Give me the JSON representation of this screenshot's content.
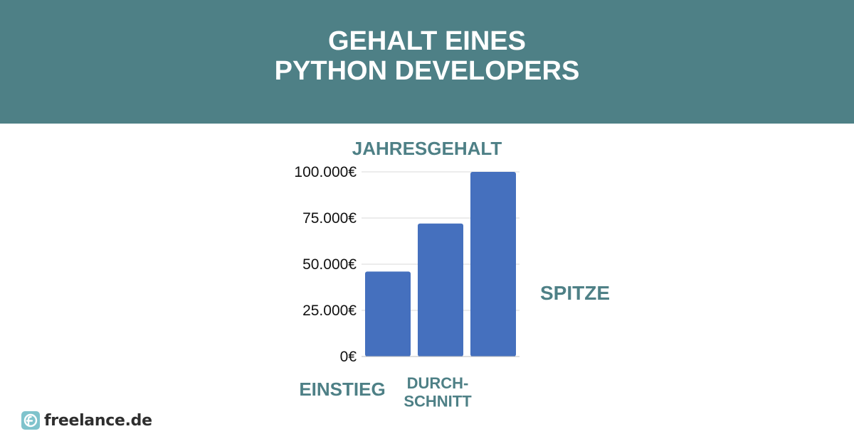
{
  "header": {
    "title_line1": "GEHALT EINES",
    "title_line2": "PYTHON DEVELOPERS"
  },
  "brand": {
    "name": "freelance.de",
    "icon": "freelance-logo-icon"
  },
  "colors": {
    "header_bg": "#4e8086",
    "bar": "#4570be",
    "label": "#4e8086",
    "gridline": "#d9d9d9"
  },
  "chart_data": {
    "type": "bar",
    "title": "JAHRESGEHALT",
    "categories": [
      "EINSTIEG",
      "DURCH-\nSCHNITT",
      "SPITZE"
    ],
    "values": [
      46000,
      72000,
      100000
    ],
    "ylim": [
      0,
      100000
    ],
    "yticks": [
      0,
      25000,
      50000,
      75000,
      100000
    ],
    "ytick_labels": [
      "0€",
      "25.000€",
      "50.000€",
      "75.000€",
      "100.000€"
    ],
    "grid": true
  }
}
